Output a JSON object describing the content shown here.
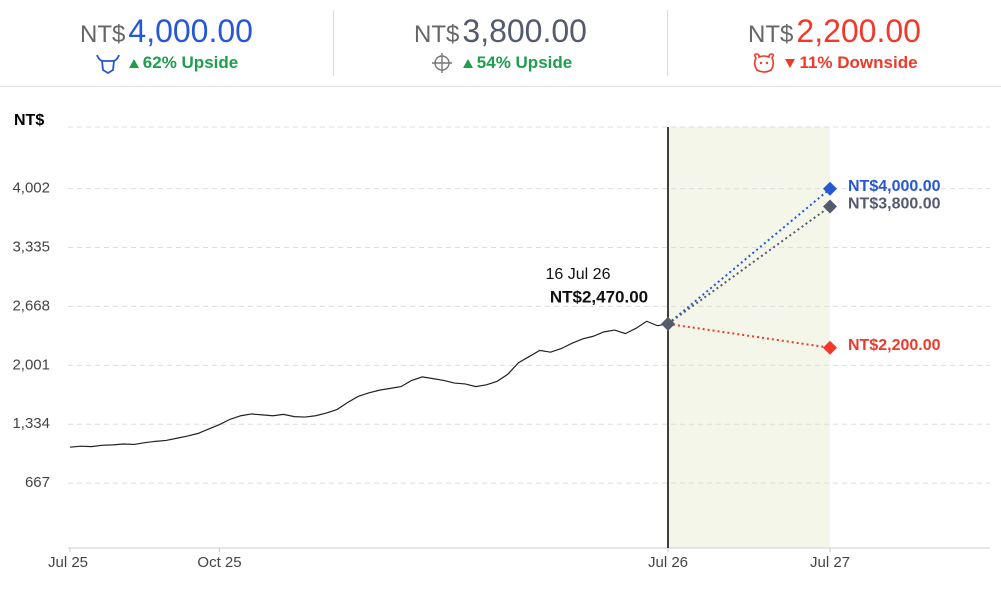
{
  "header": {
    "scenarios": [
      {
        "currency": "NT$",
        "price": "4,000.00",
        "change": "62% Upside"
      },
      {
        "currency": "NT$",
        "price": "3,800.00",
        "change": "54% Upside"
      },
      {
        "currency": "NT$",
        "price": "2,200.00",
        "change": "11% Downside"
      }
    ]
  },
  "chart_data": {
    "type": "line",
    "y_label": "NT$",
    "yticks": [
      667,
      {
        "value": 1334,
        "label": "1,334"
      },
      {
        "value": 2001,
        "label": "2,001"
      },
      {
        "value": 2668,
        "label": "2,668"
      },
      {
        "value": 3335,
        "label": "3,335"
      },
      {
        "value": 4002,
        "label": "4,002"
      }
    ],
    "ylim": [
      0,
      4700
    ],
    "xticks": [
      {
        "value": 0,
        "label": "Jul 25"
      },
      {
        "value": 3,
        "label": "Oct 25"
      },
      {
        "value": 12,
        "label": "Jul 26"
      },
      {
        "value": 24,
        "label": "Jul 27"
      }
    ],
    "grid": true,
    "series": [
      {
        "color": "#222222",
        "values": [
          1074,
          1085,
          1080,
          1095,
          1100,
          1110,
          1105,
          1125,
          1140,
          1150,
          1175,
          1200,
          1230,
          1280,
          1330,
          1390,
          1430,
          1450,
          1440,
          1430,
          1445,
          1420,
          1415,
          1430,
          1460,
          1500,
          1580,
          1650,
          1690,
          1720,
          1740,
          1760,
          1830,
          1870,
          1850,
          1830,
          1800,
          1790,
          1760,
          1780,
          1820,
          1900,
          2030,
          2100,
          2170,
          2150,
          2190,
          2250,
          2300,
          2330,
          2380,
          2400,
          2360,
          2420,
          2500,
          2450,
          2470
        ]
      }
    ],
    "annotation": {
      "date": "16 Jul 26",
      "label": "NT$2,470.00"
    },
    "targets": [
      {
        "color": "#2657d6",
        "value": 4000,
        "value_label": "NT$4,000.00"
      },
      {
        "color": "#555b6e",
        "value": 3800,
        "value_label": "NT$3,800.00"
      },
      {
        "color": "#f0392b",
        "value": 2200,
        "value_label": "NT$2,200.00"
      }
    ]
  }
}
